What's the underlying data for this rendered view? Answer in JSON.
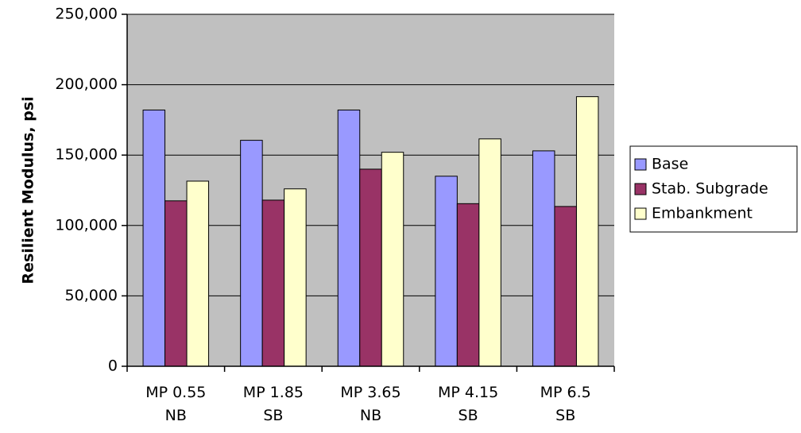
{
  "chart_data": {
    "type": "bar",
    "title": "",
    "xlabel": "",
    "ylabel": "Resilient Modulus, psi",
    "ylim": [
      0,
      250000
    ],
    "yticks": [
      0,
      50000,
      100000,
      150000,
      200000,
      250000
    ],
    "ytick_labels": [
      "0",
      "50,000",
      "100,000",
      "150,000",
      "200,000",
      "250,000"
    ],
    "grid": true,
    "legend_position": "right",
    "plot_background": "#c0c0c0",
    "categories": [
      [
        "MP 0.55",
        "NB"
      ],
      [
        "MP 1.85",
        "SB"
      ],
      [
        "MP 3.65",
        "NB"
      ],
      [
        "MP 4.15",
        "SB"
      ],
      [
        "MP 6.5",
        "SB"
      ]
    ],
    "series": [
      {
        "name": "Base",
        "color": "#9999ff",
        "values": [
          182000,
          160500,
          182000,
          135000,
          153000
        ]
      },
      {
        "name": "Stab. Subgrade",
        "color": "#993366",
        "values": [
          117500,
          118000,
          140000,
          115500,
          113500
        ]
      },
      {
        "name": "Embankment",
        "color": "#ffffcc",
        "values": [
          131500,
          126000,
          152000,
          161500,
          191500
        ]
      }
    ]
  }
}
